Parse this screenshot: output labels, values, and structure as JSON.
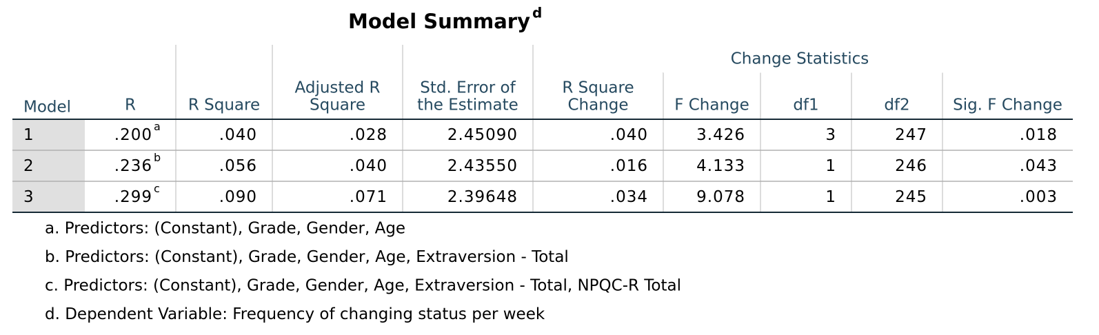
{
  "title": {
    "text": "Model Summary",
    "superscript": "d"
  },
  "table": {
    "group_header": "Change Statistics",
    "columns": [
      [
        "Model"
      ],
      [
        "R"
      ],
      [
        "R Square"
      ],
      [
        "Adjusted R",
        "Square"
      ],
      [
        "Std. Error of",
        "the Estimate"
      ],
      [
        "R Square",
        "Change"
      ],
      [
        "F Change"
      ],
      [
        "df1"
      ],
      [
        "df2"
      ],
      [
        "Sig. F Change"
      ]
    ],
    "rows": [
      {
        "model": "1",
        "r": ".200",
        "r_note": "a",
        "cells": [
          ".040",
          ".028",
          "2.45090",
          ".040",
          "3.426",
          "3",
          "247",
          ".018"
        ]
      },
      {
        "model": "2",
        "r": ".236",
        "r_note": "b",
        "cells": [
          ".056",
          ".040",
          "2.43550",
          ".016",
          "4.133",
          "1",
          "246",
          ".043"
        ]
      },
      {
        "model": "3",
        "r": ".299",
        "r_note": "c",
        "cells": [
          ".090",
          ".071",
          "2.39648",
          ".034",
          "9.078",
          "1",
          "245",
          ".003"
        ]
      }
    ]
  },
  "footnotes": [
    "a. Predictors: (Constant), Grade, Gender, Age",
    "b. Predictors: (Constant), Grade, Gender, Age, Extraversion - Total",
    "c. Predictors: (Constant), Grade, Gender, Age, Extraversion - Total, NPQC-R Total",
    "d. Dependent Variable: Frequency of changing status per week"
  ]
}
